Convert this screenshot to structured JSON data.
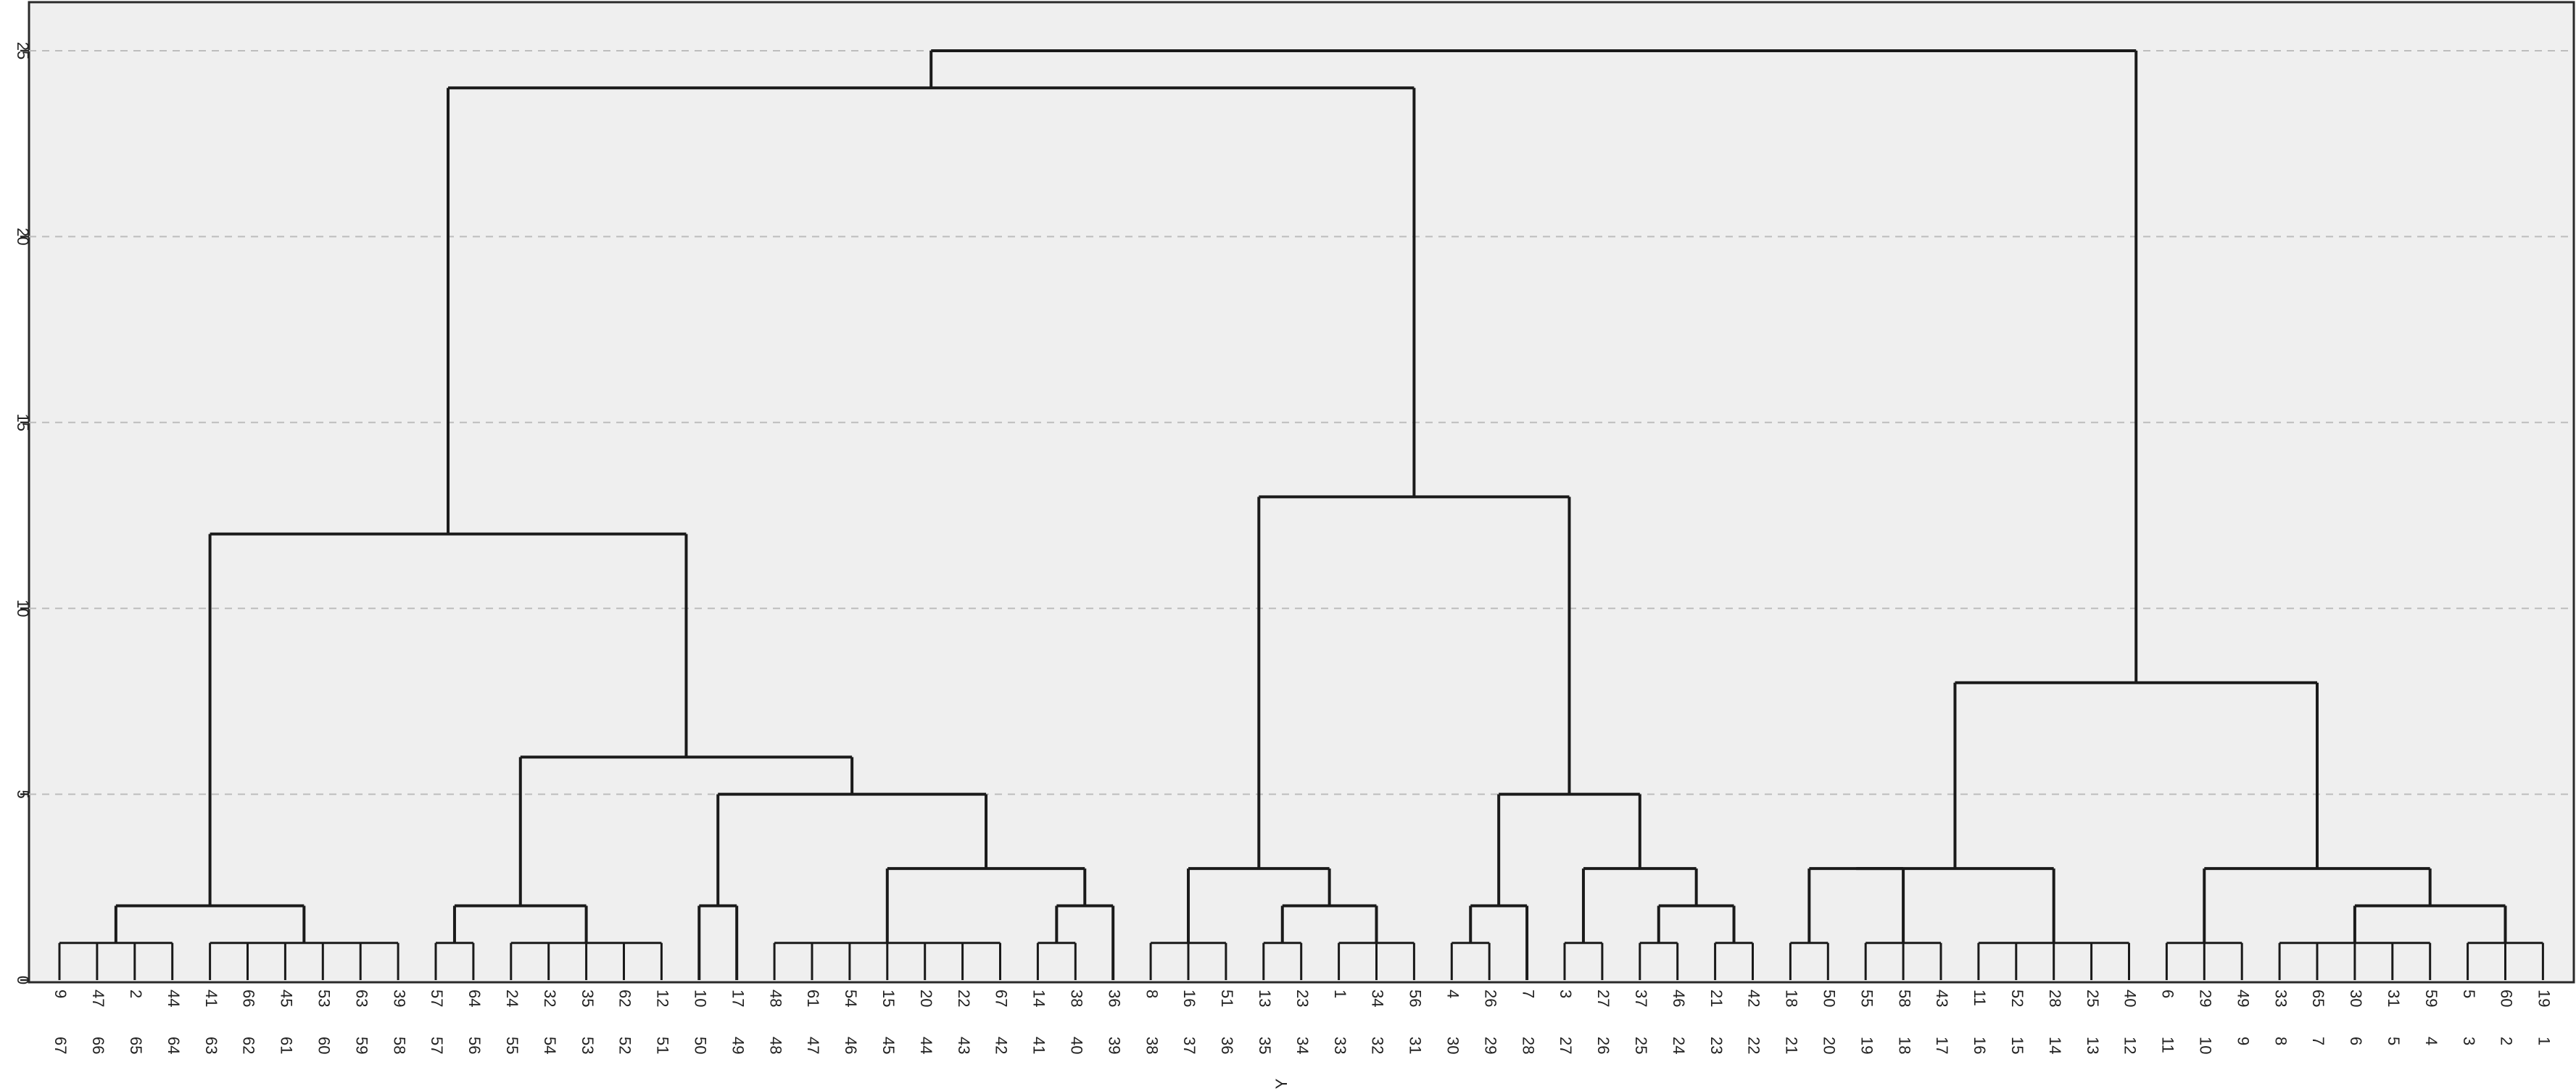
{
  "chart_data": {
    "type": "dendrogram",
    "title": "",
    "xlabel": "Y",
    "ylabel": "",
    "ylim": [
      0,
      26
    ],
    "yticks": [
      0,
      5,
      10,
      15,
      20,
      25
    ],
    "grid": true,
    "leaf_labels": [
      "9",
      "47",
      "2",
      "44",
      "41",
      "66",
      "45",
      "53",
      "63",
      "39",
      "57",
      "64",
      "24",
      "32",
      "35",
      "62",
      "12",
      "10",
      "17",
      "48",
      "61",
      "54",
      "15",
      "20",
      "22",
      "67",
      "14",
      "38",
      "36",
      "8",
      "16",
      "51",
      "13",
      "23",
      "1",
      "34",
      "56",
      "4",
      "26",
      "7",
      "3",
      "27",
      "37",
      "46",
      "21",
      "42",
      "18",
      "50",
      "55",
      "58",
      "43",
      "11",
      "52",
      "28",
      "25",
      "40",
      "6",
      "29",
      "49",
      "33",
      "65",
      "30",
      "31",
      "59",
      "5",
      "60",
      "19"
    ],
    "axis_labels": [
      "67",
      "66",
      "65",
      "64",
      "63",
      "62",
      "61",
      "60",
      "59",
      "58",
      "57",
      "56",
      "55",
      "54",
      "53",
      "52",
      "51",
      "50",
      "49",
      "48",
      "47",
      "46",
      "45",
      "44",
      "43",
      "42",
      "41",
      "40",
      "39",
      "38",
      "37",
      "36",
      "35",
      "34",
      "33",
      "32",
      "31",
      "30",
      "29",
      "28",
      "27",
      "26",
      "25",
      "24",
      "23",
      "22",
      "21",
      "20",
      "19",
      "18",
      "17",
      "16",
      "15",
      "14",
      "13",
      "12",
      "11",
      "10",
      "9",
      "8",
      "7",
      "6",
      "5",
      "4",
      "3",
      "2",
      "1"
    ],
    "merges": [
      {
        "left": [
          0,
          1,
          2,
          3
        ],
        "right": [
          4,
          5,
          6,
          7,
          8,
          9
        ],
        "height": 2
      },
      {
        "left": [
          10,
          11
        ],
        "right": [
          12,
          13,
          14,
          15,
          16
        ],
        "height": 2
      },
      {
        "left": [
          17
        ],
        "right": [
          18
        ],
        "height": 2
      },
      {
        "left": [
          26,
          27
        ],
        "right": [
          28
        ],
        "height": 2
      },
      {
        "left": [
          19,
          20,
          21,
          22,
          23,
          24,
          25
        ],
        "right": "prev",
        "height": 3
      },
      {
        "left": "merge2",
        "right": "merge4",
        "height": 5
      },
      {
        "left": "merge1",
        "right": "merge5",
        "height": 6
      },
      {
        "left": "merge0",
        "right": "merge6",
        "height": 12
      },
      {
        "left": [
          29,
          30,
          31
        ],
        "right": [
          32,
          33,
          34,
          35,
          36
        ],
        "height": 3
      },
      {
        "left": [
          37,
          38
        ],
        "right": [
          39
        ],
        "height": 2
      },
      {
        "left": [
          40,
          41
        ],
        "right": [
          42,
          43,
          44,
          45
        ],
        "height": 3
      },
      {
        "left": "merge9",
        "right": "merge10",
        "height": 5
      },
      {
        "left": "merge8",
        "right": "merge11",
        "height": 13
      },
      {
        "left": "merge7",
        "right": "merge12",
        "height": 24
      },
      {
        "left": [
          46,
          47,
          48,
          49,
          50,
          51,
          52,
          53,
          54,
          55
        ],
        "right": null,
        "height": 3
      },
      {
        "left": [
          56,
          57,
          58
        ],
        "right": [
          59,
          60,
          61,
          62,
          63,
          64,
          65,
          66
        ],
        "height": 3
      },
      {
        "left": "merge14",
        "right": "merge15",
        "height": 8
      },
      {
        "left": "merge13",
        "right": "merge16",
        "height": 25
      }
    ]
  }
}
